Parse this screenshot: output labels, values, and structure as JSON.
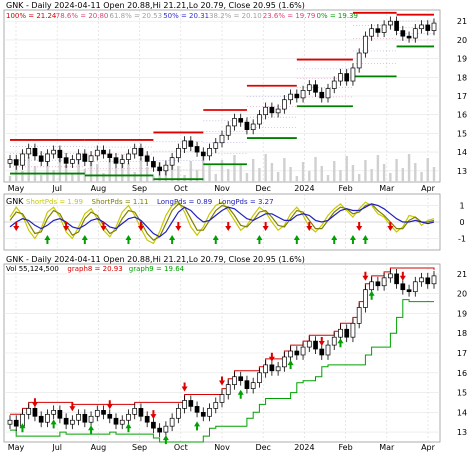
{
  "chart_data": [
    {
      "type": "line",
      "symbol": "GNK",
      "header": {
        "title": "GNK - Daily 2024-04-11 Open 20.88,Hi 21.21,Lo 20.79, Close 20.95 (1.6%)",
        "fib_levels": [
          {
            "label": "100% = 21.24",
            "color": "#d40000"
          },
          {
            "label": "78.6% = 20.80",
            "color": "#e0407a"
          },
          {
            "label": "61.8% = 20.53",
            "color": "#a0a0a0"
          },
          {
            "label": "50% = 20.31",
            "color": "#3030d0"
          },
          {
            "label": "38.2% = 20.10",
            "color": "#a0a0a0"
          },
          {
            "label": "23.6% = 19.79",
            "color": "#e0407a"
          },
          {
            "label": "0% = 19.39",
            "color": "#00a000"
          }
        ]
      },
      "x_labels": [
        "May",
        "Jul",
        "Aug",
        "Sep",
        "Oct",
        "Nov",
        "Dec",
        "2024",
        "Feb",
        "Mar",
        "Apr"
      ],
      "y_ticks": [
        13,
        14,
        15,
        16,
        17,
        18,
        19,
        20,
        21
      ],
      "ylim": [
        12.4,
        21.6
      ],
      "grid": true,
      "close": [
        13.6,
        13.3,
        13.9,
        14.2,
        13.8,
        13.5,
        13.9,
        14.1,
        13.7,
        13.4,
        13.6,
        13.9,
        13.5,
        13.8,
        14.1,
        13.9,
        13.7,
        13.4,
        13.6,
        13.9,
        14.2,
        13.8,
        13.5,
        13.2,
        13.0,
        13.3,
        13.7,
        14.2,
        14.6,
        14.3,
        14.0,
        13.8,
        14.2,
        14.5,
        14.9,
        15.4,
        15.8,
        15.6,
        15.2,
        15.5,
        16.0,
        16.4,
        16.1,
        16.3,
        16.8,
        17.1,
        16.9,
        17.3,
        17.6,
        17.2,
        16.9,
        17.4,
        17.8,
        18.2,
        17.8,
        18.5,
        19.3,
        20.2,
        20.6,
        20.4,
        20.8,
        21.0,
        20.5,
        20.2,
        20.1,
        20.6,
        20.8,
        20.5,
        20.9
      ],
      "series": [
        {
          "name": "",
          "type": "candles",
          "color": "#000000"
        }
      ]
    },
    {
      "type": "line",
      "header": {
        "title": "GNK",
        "legend": [
          {
            "label": "ShortPds = 1.99",
            "color": "#c8c800"
          },
          {
            "label": "ShortPds = 1.11",
            "color": "#808000"
          },
          {
            "label": "LongPds = 0.89",
            "color": "#2020c0"
          },
          {
            "label": "LongPds = 3.27",
            "color": "#2020c0"
          }
        ]
      },
      "y_ticks": [
        -1,
        0,
        1
      ],
      "ylim": [
        -1.7,
        1.7
      ],
      "series": [
        {
          "name": "ShortPds",
          "color": "#c8c800",
          "values": [
            0.3,
            0.9,
            0.4,
            -0.5,
            -1.0,
            -0.4,
            0.6,
            0.9,
            0.3,
            -0.6,
            -1.0,
            -0.3,
            0.5,
            0.8,
            0.2,
            -0.5,
            -0.9,
            -0.3,
            0.6,
            1.0,
            0.4,
            -0.4,
            -1.1,
            -1.3,
            -0.6,
            0.4,
            1.0,
            1.2,
            0.6,
            -0.3,
            -0.8,
            -0.3,
            0.5,
            1.0,
            1.2,
            0.7,
            0.1,
            -0.5,
            -0.2,
            0.4,
            0.9,
            0.6,
            0.0,
            -0.5,
            -0.2,
            0.5,
            0.9,
            0.4,
            -0.3,
            -0.6,
            -0.2,
            0.4,
            0.8,
            1.1,
            0.7,
            0.3,
            0.8,
            1.2,
            1.0,
            0.5,
            0.3,
            -0.2,
            -0.6,
            -0.3,
            0.4,
            0.3,
            -0.2,
            0.1,
            0.2
          ]
        },
        {
          "name": "ShortPds",
          "color": "#808000",
          "values": [
            0.1,
            0.6,
            0.5,
            -0.1,
            -0.7,
            -0.6,
            0.2,
            0.7,
            0.5,
            -0.2,
            -0.8,
            -0.6,
            0.2,
            0.6,
            0.4,
            -0.2,
            -0.7,
            -0.5,
            0.2,
            0.7,
            0.6,
            0.0,
            -0.7,
            -1.1,
            -0.9,
            -0.1,
            0.7,
            1.1,
            0.9,
            0.2,
            -0.5,
            -0.5,
            0.1,
            0.7,
            1.0,
            0.9,
            0.4,
            -0.2,
            -0.3,
            0.1,
            0.6,
            0.7,
            0.3,
            -0.2,
            -0.3,
            0.2,
            0.7,
            0.6,
            0.1,
            -0.4,
            -0.4,
            0.1,
            0.6,
            0.9,
            0.8,
            0.5,
            0.6,
            1.0,
            1.1,
            0.7,
            0.4,
            0.0,
            -0.4,
            -0.4,
            0.1,
            0.3,
            0.0,
            0.0,
            0.1
          ]
        },
        {
          "name": "LongPds",
          "color": "#2020c0",
          "values": [
            -0.3,
            0.0,
            0.2,
            0.1,
            -0.2,
            -0.4,
            -0.2,
            0.1,
            0.2,
            0.0,
            -0.3,
            -0.4,
            -0.2,
            0.1,
            0.2,
            0.0,
            -0.3,
            -0.4,
            -0.1,
            0.2,
            0.3,
            0.1,
            -0.3,
            -0.7,
            -0.9,
            -0.6,
            0.0,
            0.6,
            0.9,
            0.7,
            0.3,
            0.0,
            0.1,
            0.4,
            0.7,
            0.9,
            0.8,
            0.5,
            0.2,
            0.1,
            0.3,
            0.5,
            0.5,
            0.3,
            0.1,
            0.1,
            0.4,
            0.5,
            0.4,
            0.1,
            0.0,
            0.1,
            0.4,
            0.7,
            0.8,
            0.7,
            0.7,
            0.9,
            1.1,
            1.0,
            0.8,
            0.5,
            0.2,
            0.0,
            0.0,
            0.1,
            0.0,
            -0.1,
            0.0
          ]
        }
      ],
      "up_arrow_indices": [
        6,
        12,
        19,
        26,
        33,
        40,
        46,
        52,
        55,
        57
      ],
      "down_arrow_indices": [
        1,
        9,
        15,
        21,
        27,
        35,
        41,
        48,
        56,
        61
      ]
    },
    {
      "type": "line",
      "header": {
        "title": "GNK - Daily 2024-04-11 Open 20.88,Hi 21.21,Lo 20.79, Close 20.95 (1.6%)",
        "legend": [
          {
            "label": "Vol 55,124,500",
            "color": "#000000"
          },
          {
            "label": "graph8 = 20.93",
            "color": "#d40000"
          },
          {
            "label": "graph9 = 19.64",
            "color": "#00a000"
          }
        ]
      },
      "x_labels": [
        "May",
        "Jul",
        "Aug",
        "Sep",
        "Oct",
        "Nov",
        "Dec",
        "2024",
        "Feb",
        "Mar",
        "Apr"
      ],
      "y_ticks": [
        13,
        14,
        15,
        16,
        17,
        18,
        19,
        20,
        21
      ],
      "ylim": [
        12.5,
        21.5
      ],
      "series": [
        {
          "name": "graph8",
          "color": "#d40000",
          "type": "step"
        },
        {
          "name": "graph9",
          "color": "#00a000",
          "type": "step"
        }
      ],
      "up_arrow_indices": [
        2,
        7,
        13,
        19,
        25,
        30,
        37,
        45,
        53,
        58
      ],
      "down_arrow_indices": [
        4,
        10,
        16,
        23,
        28,
        34,
        42,
        50,
        57,
        63
      ]
    }
  ]
}
